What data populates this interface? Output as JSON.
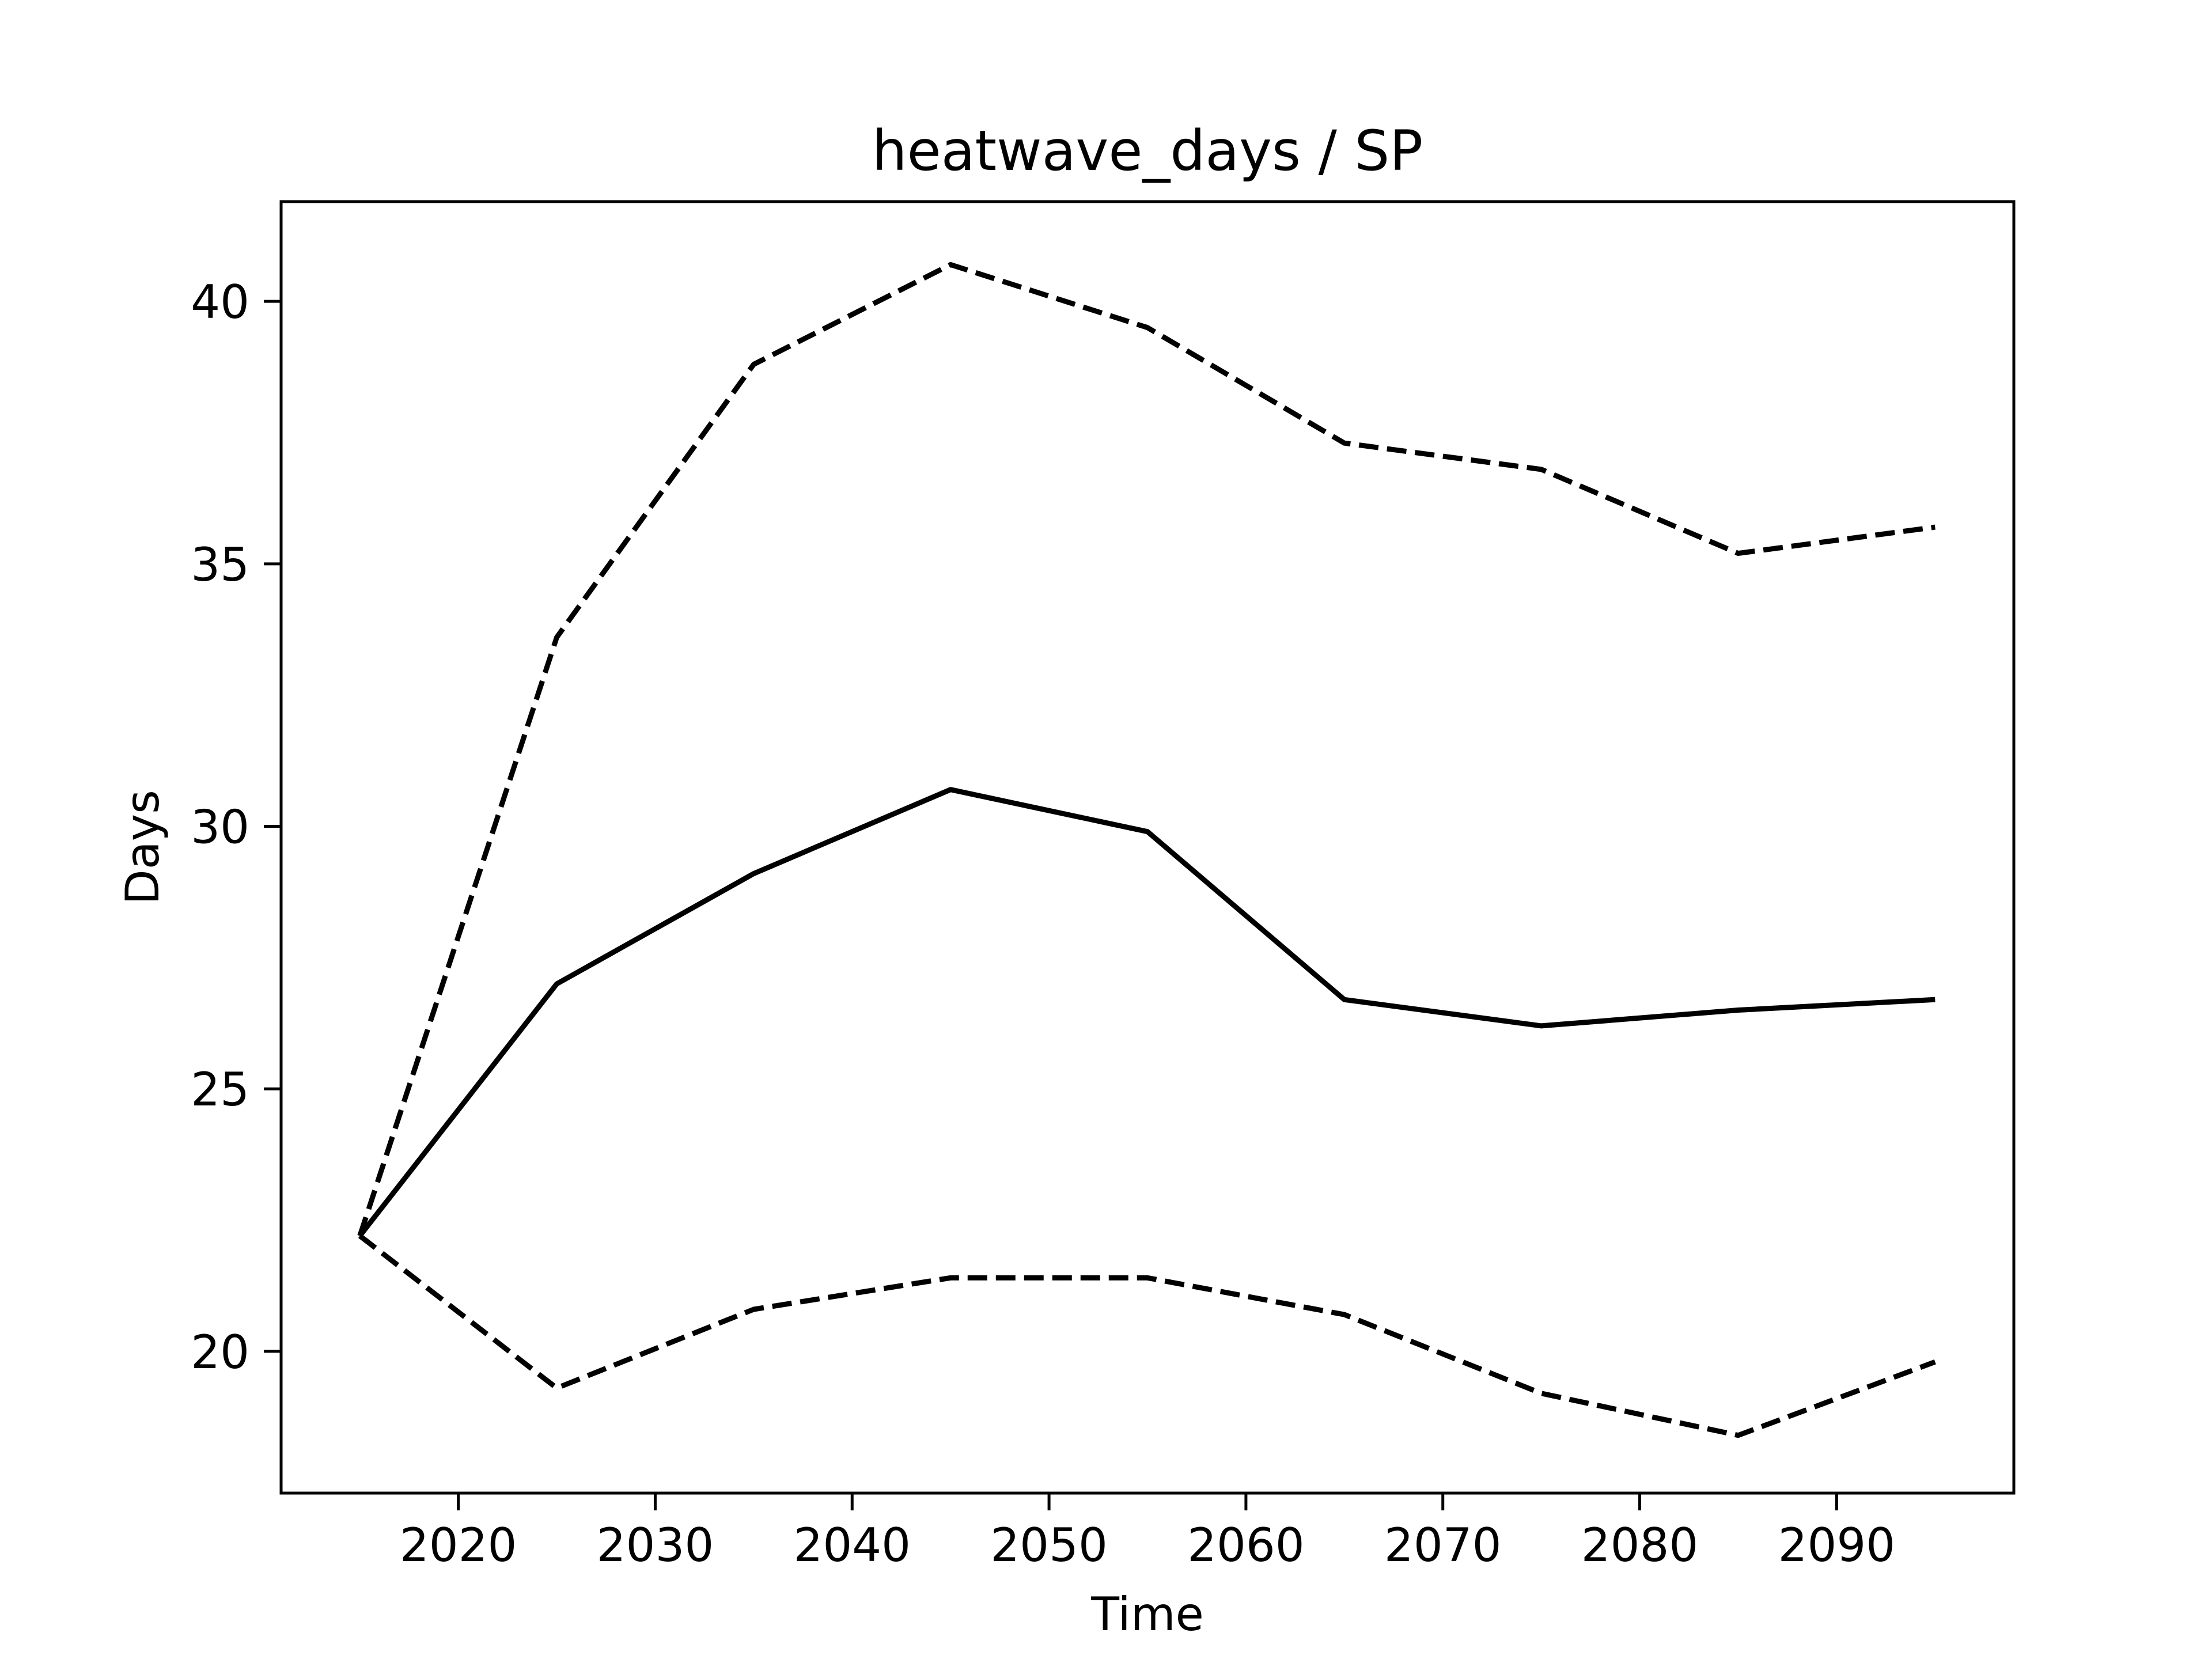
{
  "chart_data": {
    "type": "line",
    "title": "heatwave_days / SP",
    "xlabel": "Time",
    "ylabel": "Days",
    "xlim": [
      2011,
      2099
    ],
    "ylim": [
      17.3,
      41.9
    ],
    "xticks": [
      2020,
      2030,
      2040,
      2050,
      2060,
      2070,
      2080,
      2090
    ],
    "yticks": [
      20,
      25,
      30,
      35,
      40
    ],
    "grid": false,
    "x": [
      2015,
      2025,
      2035,
      2045,
      2055,
      2065,
      2075,
      2085,
      2095
    ],
    "series": [
      {
        "style": "solid",
        "color": "#000000",
        "values": [
          22.2,
          27.0,
          29.1,
          30.7,
          29.9,
          26.7,
          26.2,
          26.5,
          26.7
        ]
      },
      {
        "style": "dashed",
        "color": "#000000",
        "values": [
          22.2,
          33.6,
          38.8,
          40.7,
          39.5,
          37.3,
          36.8,
          35.2,
          35.7
        ]
      },
      {
        "style": "dashed",
        "color": "#000000",
        "values": [
          22.2,
          19.3,
          20.8,
          21.4,
          21.4,
          20.7,
          19.2,
          18.4,
          19.8
        ]
      }
    ]
  }
}
